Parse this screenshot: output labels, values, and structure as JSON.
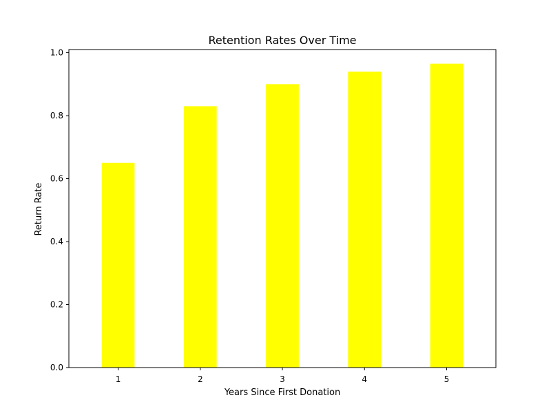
{
  "chart_data": {
    "type": "bar",
    "title": "Retention Rates Over Time",
    "xlabel": "Years Since First Donation",
    "ylabel": "Return Rate",
    "categories": [
      "1",
      "2",
      "3",
      "4",
      "5"
    ],
    "values": [
      0.65,
      0.83,
      0.9,
      0.94,
      0.965
    ],
    "ylim": [
      0,
      1.01
    ],
    "yticks": [
      0.0,
      0.2,
      0.4,
      0.6,
      0.8,
      1.0
    ],
    "ytick_labels": [
      "0.0",
      "0.2",
      "0.4",
      "0.6",
      "0.8",
      "1.0"
    ],
    "bar_color": "#ffff00",
    "grid": false,
    "legend": false
  }
}
